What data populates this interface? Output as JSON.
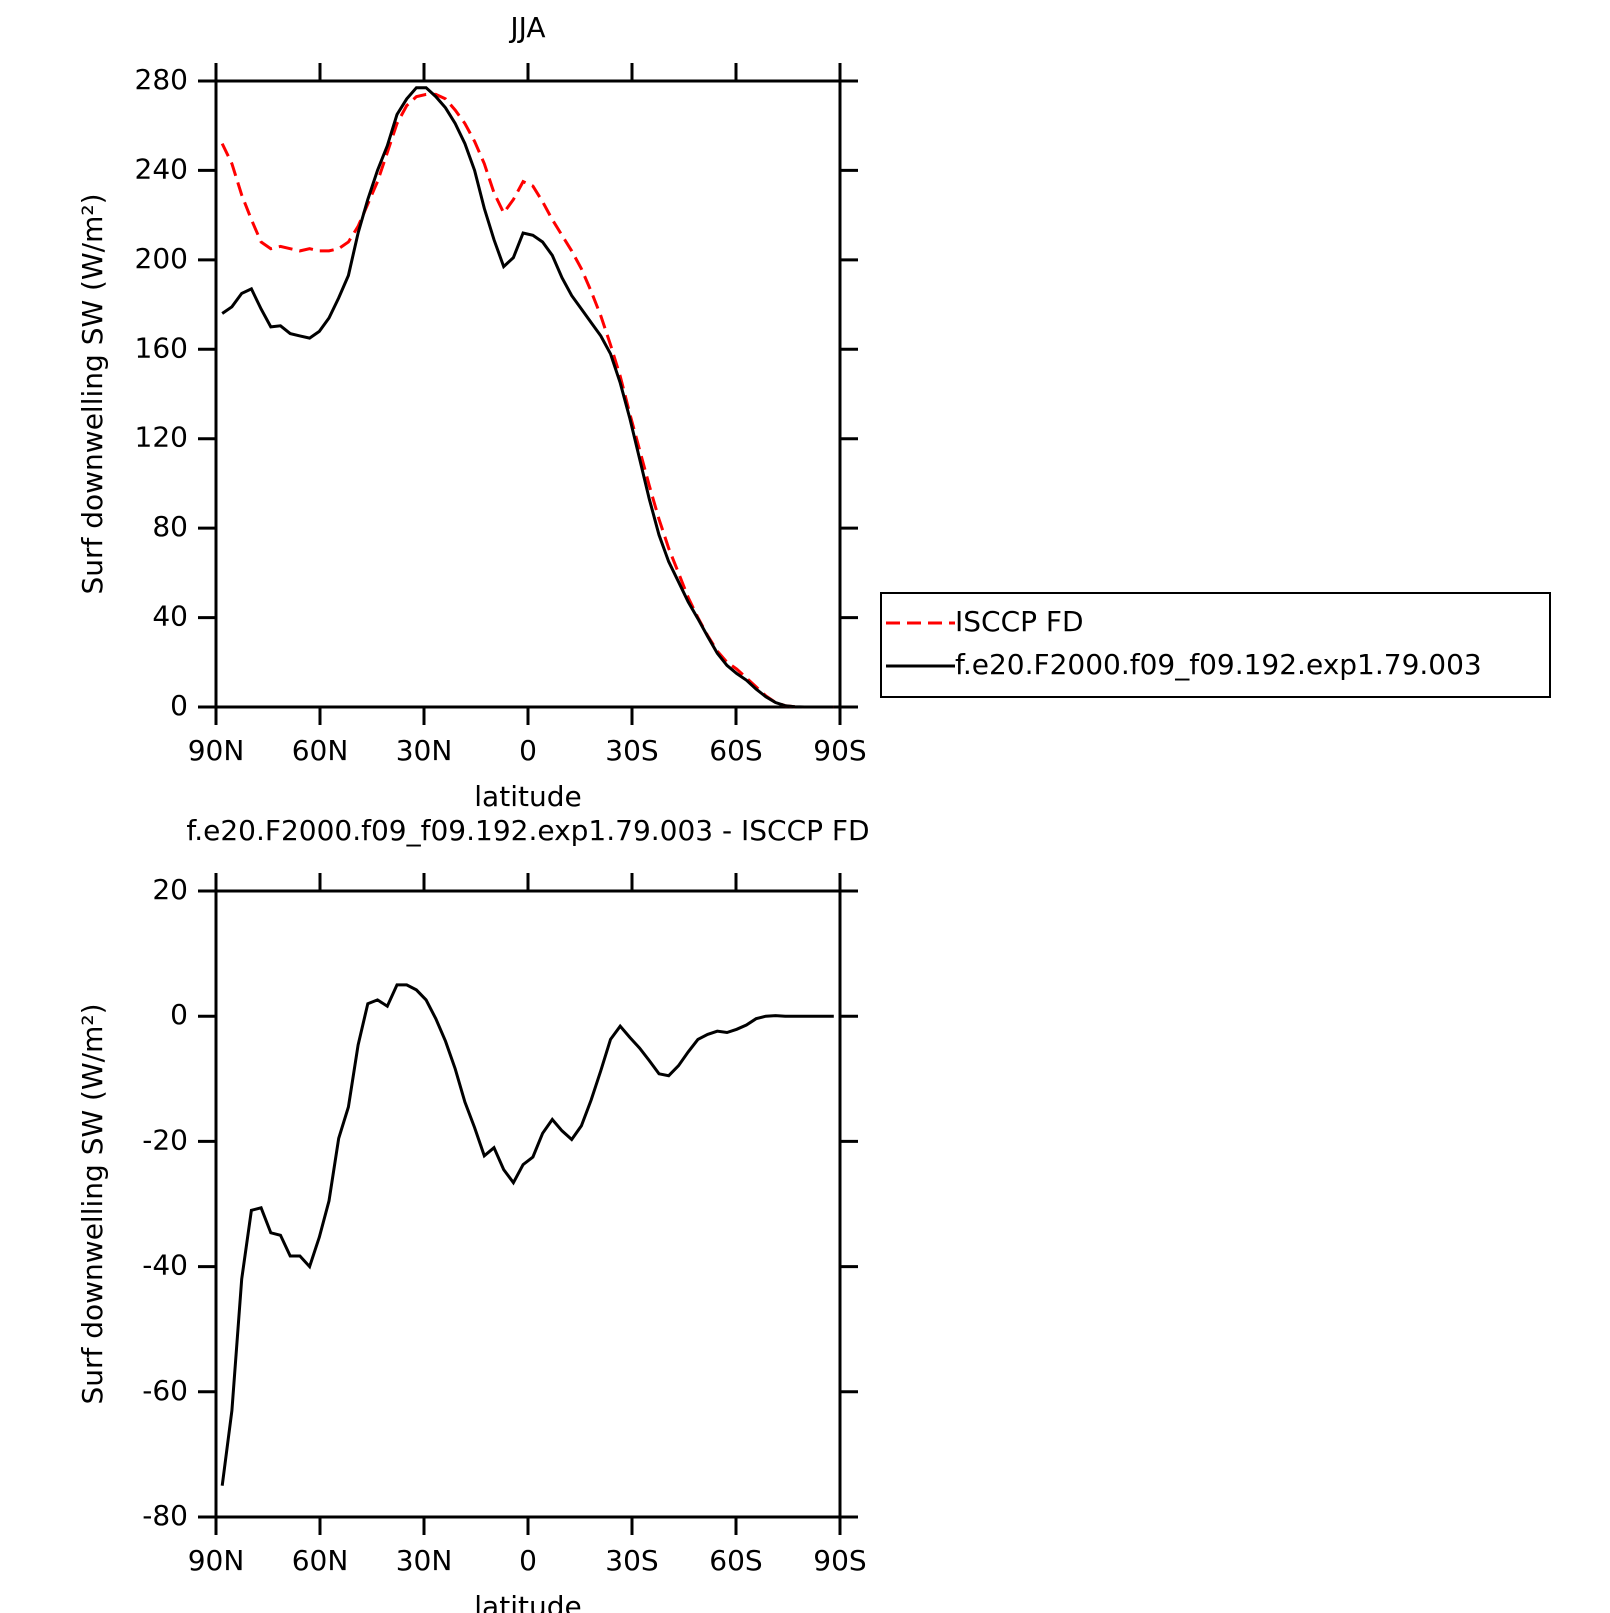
{
  "chart_data": [
    {
      "type": "line",
      "title": "JJA",
      "xlabel": "latitude",
      "ylabel": "Surf downwelling SW (W/m²)",
      "x": [
        88.2,
        85.4,
        82.6,
        79.8,
        77,
        74.2,
        71.4,
        68.6,
        65.8,
        63,
        60.2,
        57.4,
        54.6,
        51.8,
        49,
        46.2,
        43.4,
        40.6,
        37.8,
        35,
        32.2,
        29.4,
        26.6,
        23.8,
        21,
        18.2,
        15.4,
        12.6,
        9.8,
        7,
        4.2,
        1.4,
        -1.4,
        -4.2,
        -7,
        -9.8,
        -12.6,
        -15.4,
        -18.2,
        -21,
        -23.8,
        -26.6,
        -29.4,
        -32.2,
        -35,
        -37.8,
        -40.6,
        -43.4,
        -46.2,
        -49,
        -51.8,
        -54.6,
        -57.4,
        -60.2,
        -63,
        -65.8,
        -68.6,
        -71.4,
        -74.2,
        -77,
        -79.8,
        -82.6,
        -85.4,
        -88.2
      ],
      "series": [
        {
          "name": "ISCCP FD",
          "color": "#ff0000",
          "dashed": true,
          "values": [
            252,
            243,
            229,
            218,
            208,
            205,
            206,
            205,
            204,
            205,
            204,
            204,
            205,
            208,
            215,
            225,
            235,
            248,
            261,
            269,
            273,
            274,
            274,
            272,
            267,
            261,
            253,
            243,
            230,
            221,
            227,
            235,
            233,
            226,
            218,
            211,
            204,
            196,
            186,
            175,
            162,
            148,
            131,
            115,
            99,
            84,
            71,
            60,
            49,
            40,
            32,
            25,
            20,
            17,
            13,
            9,
            5,
            2,
            0.6,
            0.1,
            0,
            0,
            0,
            0
          ]
        },
        {
          "name": "f.e20.F2000.f09_f09.192.exp1.79.003",
          "color": "#000000",
          "dashed": false,
          "values": [
            176,
            179,
            185,
            187,
            178,
            170,
            170.5,
            167,
            166,
            165,
            168,
            174,
            183,
            193,
            212,
            227,
            240,
            251,
            265,
            272,
            277,
            277,
            273,
            268,
            261,
            252,
            240,
            223,
            209,
            197,
            201,
            212,
            211,
            208,
            202,
            192,
            184,
            178,
            172,
            166,
            158,
            145,
            129,
            111,
            93,
            77,
            65,
            56,
            47,
            39.5,
            31.6,
            24,
            18.6,
            15,
            12,
            8,
            4.6,
            2,
            0.6,
            0.1,
            0,
            0,
            0,
            0
          ]
        }
      ],
      "xlim": [
        90,
        -90
      ],
      "xticks": [
        {
          "value": 90,
          "label": "90N"
        },
        {
          "value": 60,
          "label": "60N"
        },
        {
          "value": 30,
          "label": "30N"
        },
        0,
        {
          "value": -30,
          "label": "30S"
        },
        {
          "value": -60,
          "label": "60S"
        },
        {
          "value": -90,
          "label": "90S"
        }
      ],
      "ylim": [
        0,
        280
      ],
      "yticks": [
        0,
        40,
        80,
        120,
        160,
        200,
        240,
        280
      ],
      "legend": "right"
    },
    {
      "type": "line",
      "title": "f.e20.F2000.f09_f09.192.exp1.79.003 - ISCCP FD",
      "xlabel": "latitude",
      "ylabel": "Surf downwelling SW (W/m²)",
      "x": [
        88.2,
        85.4,
        82.6,
        79.8,
        77,
        74.2,
        71.4,
        68.6,
        65.8,
        63,
        60.2,
        57.4,
        54.6,
        51.8,
        49,
        46.2,
        43.4,
        40.6,
        37.8,
        35,
        32.2,
        29.4,
        26.6,
        23.8,
        21,
        18.2,
        15.4,
        12.6,
        9.8,
        7,
        4.2,
        1.4,
        -1.4,
        -4.2,
        -7,
        -9.8,
        -12.6,
        -15.4,
        -18.2,
        -21,
        -23.8,
        -26.6,
        -29.4,
        -32.2,
        -35,
        -37.8,
        -40.6,
        -43.4,
        -46.2,
        -49,
        -51.8,
        -54.6,
        -57.4,
        -60.2,
        -63,
        -65.8,
        -68.6,
        -71.4,
        -74.2,
        -77,
        -79.8,
        -82.6,
        -85.4,
        -88.2
      ],
      "color": "#000000",
      "values": [
        -75,
        -63,
        -42,
        -31,
        -30.6,
        -34.6,
        -35,
        -38.3,
        -38.3,
        -40,
        -35.3,
        -29.5,
        -19.5,
        -14.5,
        -4.6,
        2,
        2.6,
        1.6,
        5,
        5,
        4.2,
        2.6,
        -0.4,
        -4,
        -8.4,
        -13.7,
        -17.8,
        -22.3,
        -21,
        -24.5,
        -26.6,
        -23.7,
        -22.5,
        -18.7,
        -16.5,
        -18.3,
        -19.7,
        -17.5,
        -13.4,
        -8.7,
        -3.7,
        -1.6,
        -3.4,
        -5.1,
        -7.1,
        -9.2,
        -9.5,
        -7.9,
        -5.7,
        -3.7,
        -2.9,
        -2.4,
        -2.6,
        -2.1,
        -1.4,
        -0.4,
        0,
        0.1,
        0,
        0,
        0,
        0,
        0,
        0
      ],
      "xlim": [
        90,
        -90
      ],
      "xticks": [
        {
          "value": 90,
          "label": "90N"
        },
        {
          "value": 60,
          "label": "60N"
        },
        {
          "value": 30,
          "label": "30N"
        },
        0,
        {
          "value": -30,
          "label": "30S"
        },
        {
          "value": -60,
          "label": "60S"
        },
        {
          "value": -90,
          "label": "90S"
        }
      ],
      "ylim": [
        -80,
        20
      ],
      "yticks": [
        -80,
        -60,
        -40,
        -20,
        0,
        20
      ]
    }
  ]
}
